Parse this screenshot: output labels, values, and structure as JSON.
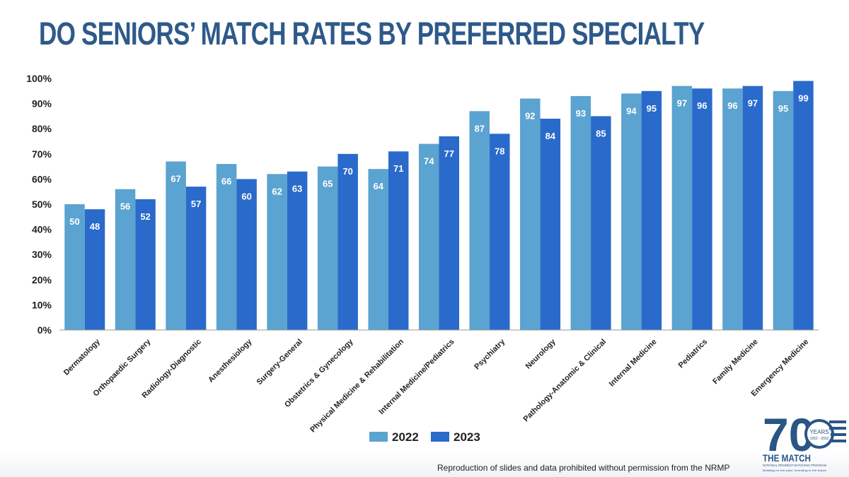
{
  "title": "DO SENIORS’ MATCH RATES BY PREFERRED SPECIALTY",
  "footer": "Reproduction of slides and data prohibited without permission from the NRMP",
  "logo": {
    "number": "70",
    "years": "YEARS",
    "range": "1952 - 2022",
    "brand": "THE MATCH",
    "subtitle": "NATIONAL RESIDENT MATCHING PROGRAM",
    "tagline": "Building on the past, Investing in the future"
  },
  "colors": {
    "title": "#2e5a8a",
    "series_2022": "#5ba3d0",
    "series_2023": "#2a6acb",
    "bar_label": "#ffffff",
    "axis": "#222222"
  },
  "chart_data": {
    "type": "bar",
    "title": "DO SENIORS’ MATCH RATES BY PREFERRED SPECIALTY",
    "xlabel": "",
    "ylabel": "",
    "ylim": [
      0,
      100
    ],
    "yticks": [
      "0%",
      "10%",
      "20%",
      "30%",
      "40%",
      "50%",
      "60%",
      "70%",
      "80%",
      "90%",
      "100%"
    ],
    "grid": false,
    "legend": "bottom-center",
    "categories": [
      "Dermatology",
      "Orthopaedic Surgery",
      "Radiology-Diagnostic",
      "Anesthesiology",
      "Surgery-General",
      "Obstetrics & Gynecology",
      "Physical Medicine & Rehabilitation",
      "Internal Medicine/Pediatrics",
      "Psychiatry",
      "Neurology",
      "Pathology-Anatomic & Clinical",
      "Internal Medicine",
      "Pediatrics",
      "Family Medicine",
      "Emergency Medicine"
    ],
    "series": [
      {
        "name": "2022",
        "values": [
          50,
          56,
          67,
          66,
          62,
          65,
          64,
          74,
          87,
          92,
          93,
          94,
          97,
          96,
          95
        ]
      },
      {
        "name": "2023",
        "values": [
          48,
          52,
          57,
          60,
          63,
          70,
          71,
          77,
          78,
          84,
          85,
          95,
          96,
          97,
          99
        ]
      }
    ]
  }
}
